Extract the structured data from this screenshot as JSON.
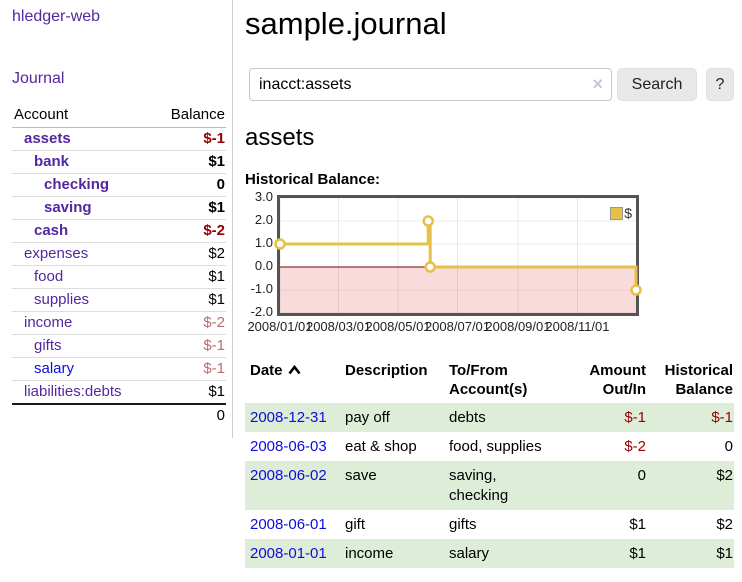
{
  "colors": {
    "link_purple": "#54279e",
    "link_blue": "#0d0dde",
    "negative_strong": "#990000",
    "negative_dim": "#bf6a6d",
    "row_stripe_green": "#deedd8",
    "negative_region": "#f9dbdb",
    "zero_line": "#7b0000",
    "series_gold": "#e7c04a"
  },
  "sidebar": {
    "brand": "hledger-web",
    "nav": {
      "journal": "Journal"
    },
    "table": {
      "col_account": "Account",
      "col_balance": "Balance",
      "accounts": [
        {
          "name": "assets",
          "depth": 1,
          "bold": true,
          "name_color": "purple",
          "balance": "$-1",
          "balance_color": "negative",
          "balance_bold": true
        },
        {
          "name": "bank",
          "depth": 2,
          "bold": true,
          "name_color": "purple",
          "balance": "$1",
          "balance_color": "normal",
          "balance_bold": true
        },
        {
          "name": "checking",
          "depth": 3,
          "bold": true,
          "name_color": "purple",
          "balance": "0",
          "balance_color": "normal",
          "balance_bold": true
        },
        {
          "name": "saving",
          "depth": 3,
          "bold": true,
          "name_color": "purple",
          "balance": "$1",
          "balance_color": "normal",
          "balance_bold": true
        },
        {
          "name": "cash",
          "depth": 2,
          "bold": true,
          "name_color": "purple",
          "balance": "$-2",
          "balance_color": "negative",
          "balance_bold": true
        },
        {
          "name": "expenses",
          "depth": 1,
          "bold": false,
          "name_color": "purple",
          "balance": "$2",
          "balance_color": "normal",
          "balance_bold": false
        },
        {
          "name": "food",
          "depth": 2,
          "bold": false,
          "name_color": "purple",
          "balance": "$1",
          "balance_color": "normal",
          "balance_bold": false
        },
        {
          "name": "supplies",
          "depth": 2,
          "bold": false,
          "name_color": "purple",
          "balance": "$1",
          "balance_color": "normal",
          "balance_bold": false
        },
        {
          "name": "income",
          "depth": 1,
          "bold": false,
          "name_color": "purple",
          "balance": "$-2",
          "balance_color": "negative-dim",
          "balance_bold": false
        },
        {
          "name": "gifts",
          "depth": 2,
          "bold": false,
          "name_color": "purple",
          "balance": "$-1",
          "balance_color": "negative-dim",
          "balance_bold": false
        },
        {
          "name": "salary",
          "depth": 2,
          "bold": false,
          "name_color": "blue",
          "balance": "$-1",
          "balance_color": "negative-dim",
          "balance_bold": false
        },
        {
          "name": "liabilities:debts",
          "depth": 1,
          "bold": false,
          "name_color": "purple",
          "balance": "$1",
          "balance_color": "normal",
          "balance_bold": false
        }
      ],
      "total": "0"
    }
  },
  "main": {
    "title": "sample.journal",
    "search": {
      "value": "inacct:assets",
      "clear_icon": "×",
      "search_button": "Search",
      "help_button": "?"
    },
    "account_heading": "assets",
    "chart_heading": "Historical Balance:"
  },
  "chart_data": {
    "type": "line",
    "subtype": "step-after",
    "title": "Historical Balance:",
    "series": [
      {
        "name": "$",
        "color": "#e7c04a",
        "points": [
          [
            "2008-01-01",
            1
          ],
          [
            "2008-06-01",
            2
          ],
          [
            "2008-06-03",
            0
          ],
          [
            "2008-12-31",
            -1
          ]
        ]
      }
    ],
    "x_range": [
      "2008/01/01",
      "2008/12/31"
    ],
    "x_ticks": [
      "2008/01/01",
      "2008/03/01",
      "2008/05/01",
      "2008/07/01",
      "2008/09/01",
      "2008/11/01"
    ],
    "y_ticks": [
      "3.0",
      "2.0",
      "1.0",
      "0.0",
      "-1.0",
      "-2.0"
    ],
    "ylim": [
      -2,
      3
    ],
    "grid": true,
    "legend": {
      "label": "$",
      "position": "top-right"
    },
    "negative_region": true
  },
  "register": {
    "columns": {
      "date": "Date",
      "sort_icon": "chevron-up",
      "description": "Description",
      "tofrom": [
        "To/From",
        "Account(s)"
      ],
      "amount": [
        "Amount",
        "Out/In"
      ],
      "balance": [
        "Historical",
        "Balance"
      ]
    },
    "rows": [
      {
        "date": "2008-12-31",
        "description": "pay off",
        "tofrom_lines": [
          "debts"
        ],
        "amount": "$-1",
        "amount_negative": true,
        "balance": "$-1",
        "balance_negative": true
      },
      {
        "date": "2008-06-03",
        "description": "eat & shop",
        "tofrom_lines": [
          "food, supplies"
        ],
        "amount": "$-2",
        "amount_negative": true,
        "balance": "0",
        "balance_negative": false
      },
      {
        "date": "2008-06-02",
        "description": "save",
        "tofrom_lines": [
          "saving,",
          "checking"
        ],
        "amount": "0",
        "amount_negative": false,
        "balance": "$2",
        "balance_negative": false
      },
      {
        "date": "2008-06-01",
        "description": "gift",
        "tofrom_lines": [
          "gifts"
        ],
        "amount": "$1",
        "amount_negative": false,
        "balance": "$2",
        "balance_negative": false
      },
      {
        "date": "2008-01-01",
        "description": "income",
        "tofrom_lines": [
          "salary"
        ],
        "amount": "$1",
        "amount_negative": false,
        "balance": "$1",
        "balance_negative": false
      }
    ]
  }
}
